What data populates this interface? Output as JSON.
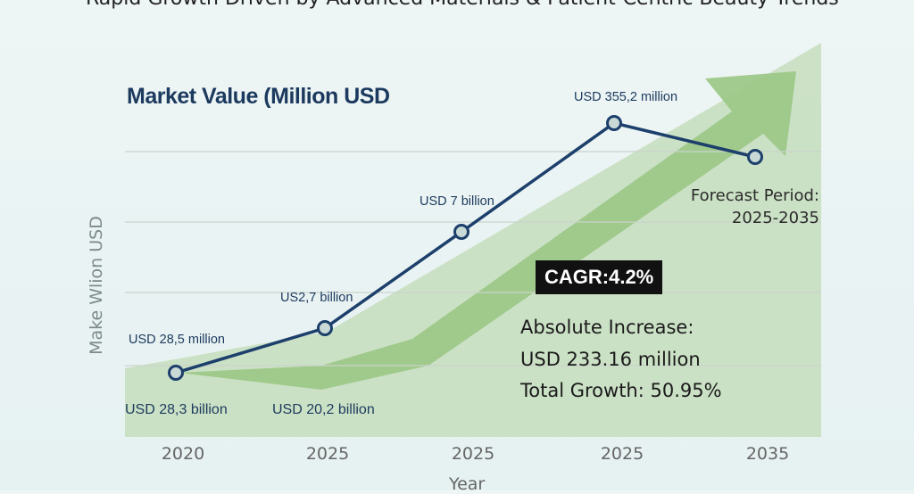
{
  "chart_data": {
    "type": "line",
    "title": "Rapid Growth Driven by Advanced Materials & Patient-Centric Beauty Trends",
    "subtitle": "Market Value (Million USD",
    "xlabel": "Year",
    "ylabel": "Make Wlion USD",
    "x_tick_labels": [
      "2020",
      "2025",
      "2025",
      "2025",
      "2035"
    ],
    "ylim": [
      0,
      100
    ],
    "grid": "horizontal",
    "series": [
      {
        "values": [
          18,
          30.5,
          57.5,
          88,
          78.5
        ],
        "point_labels": [
          "USD 28,5 million",
          "US2,7 billion",
          "USD 7 billion",
          "USD 355,2 million",
          ""
        ]
      }
    ],
    "bottom_labels": [
      "USD 28,3 billion",
      "USD 20,2 billion"
    ],
    "annotations": {
      "forecast_line1": "Forecast Period:",
      "forecast_line2": "2025-2035",
      "cagr": "CAGR:4.2%",
      "absolute_label": "Absolute Increase:",
      "absolute_value": "USD 233.16 million",
      "total_growth": "Total Growth: 50.95%"
    },
    "colors": {
      "line": "#1c3f6b",
      "marker_fill": "#c9d9d6",
      "area_light": "#c8dfc0",
      "arrow": "#9dc889",
      "grid": "#c9d3cc"
    }
  }
}
